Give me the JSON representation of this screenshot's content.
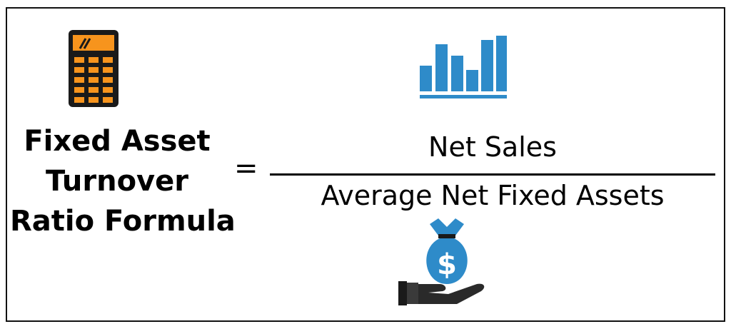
{
  "formula": {
    "title_lines": [
      "Fixed Asset",
      "Turnover",
      "Ratio Formula"
    ],
    "equals_sign": "=",
    "numerator": "Net Sales",
    "denominator": "Average Net Fixed Assets"
  },
  "icons": {
    "calculator": "calculator-icon",
    "bar_chart": "bar-chart-icon",
    "money_bag": "money-bag-hand-icon"
  },
  "colors": {
    "orange": "#F7941D",
    "blue": "#2E8BC9",
    "text": "#000000"
  }
}
